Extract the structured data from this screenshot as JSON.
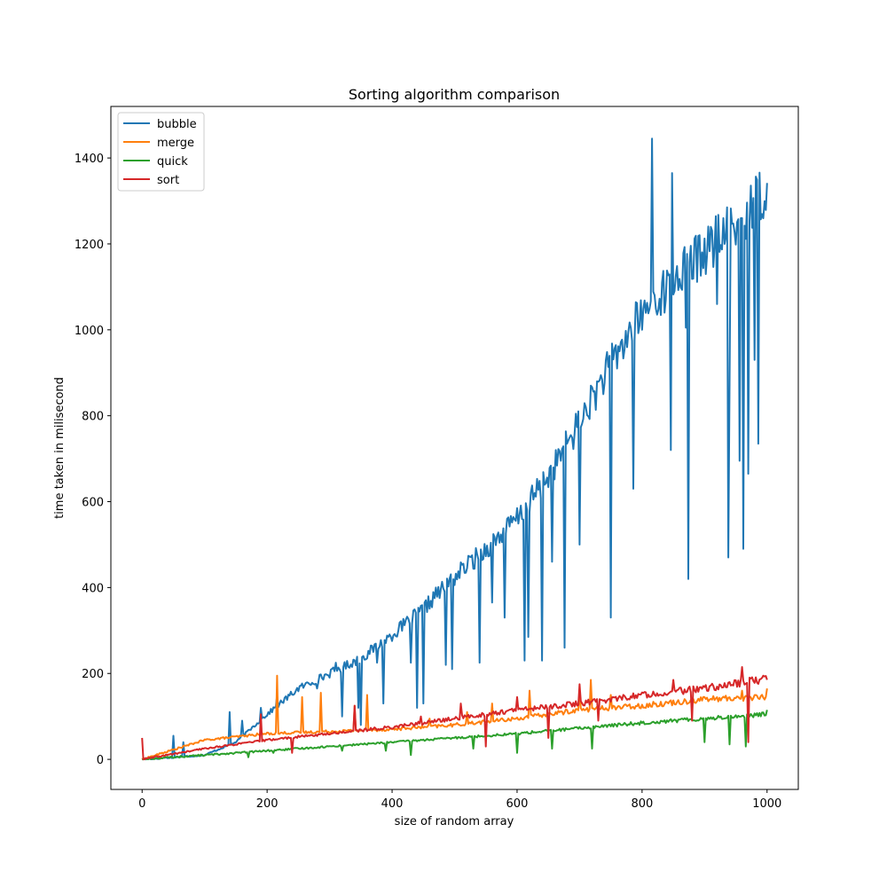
{
  "chart_data": {
    "type": "line",
    "title": "Sorting algorithm comparison",
    "xlabel": "size of random array",
    "ylabel": "time taken in milisecond",
    "xlim": [
      -50,
      1050
    ],
    "ylim": [
      -70,
      1520
    ],
    "xticks": [
      0,
      200,
      400,
      600,
      800,
      1000
    ],
    "yticks": [
      0,
      200,
      400,
      600,
      800,
      1000,
      1200,
      1400
    ],
    "grid": false,
    "legend_position": "top-left",
    "series": [
      {
        "name": "bubble",
        "color": "#1f77b4",
        "trend": [
          [
            0,
            0
          ],
          [
            100,
            10
          ],
          [
            150,
            40
          ],
          [
            200,
            105
          ],
          [
            250,
            165
          ],
          [
            300,
            200
          ],
          [
            350,
            235
          ],
          [
            400,
            290
          ],
          [
            450,
            350
          ],
          [
            500,
            425
          ],
          [
            550,
            490
          ],
          [
            600,
            560
          ],
          [
            650,
            660
          ],
          [
            700,
            785
          ],
          [
            750,
            920
          ],
          [
            800,
            1040
          ],
          [
            850,
            1115
          ],
          [
            900,
            1185
          ],
          [
            950,
            1240
          ],
          [
            1000,
            1335
          ]
        ],
        "spikes": [
          [
            50,
            55
          ],
          [
            65,
            40
          ],
          [
            140,
            110
          ],
          [
            160,
            90
          ],
          [
            190,
            120
          ],
          [
            215,
            150
          ],
          [
            280,
            165
          ],
          [
            310,
            225
          ],
          [
            320,
            100
          ],
          [
            345,
            120
          ],
          [
            350,
            80
          ],
          [
            375,
            225
          ],
          [
            385,
            130
          ],
          [
            430,
            225
          ],
          [
            440,
            120
          ],
          [
            450,
            130
          ],
          [
            470,
            400
          ],
          [
            485,
            220
          ],
          [
            495,
            210
          ],
          [
            540,
            225
          ],
          [
            560,
            365
          ],
          [
            580,
            330
          ],
          [
            612,
            230
          ],
          [
            618,
            285
          ],
          [
            640,
            230
          ],
          [
            655,
            460
          ],
          [
            675,
            260
          ],
          [
            680,
            735
          ],
          [
            700,
            500
          ],
          [
            750,
            330
          ],
          [
            785,
            630
          ],
          [
            800,
            1000
          ],
          [
            815,
            1445
          ],
          [
            835,
            1040
          ],
          [
            845,
            720
          ],
          [
            848,
            1365
          ],
          [
            870,
            1005
          ],
          [
            873,
            420
          ],
          [
            920,
            460
          ],
          [
            920,
            1060
          ],
          [
            935,
            1285
          ],
          [
            937,
            470
          ],
          [
            940,
            875
          ],
          [
            955,
            695
          ],
          [
            962,
            490
          ],
          [
            970,
            665
          ],
          [
            980,
            930
          ],
          [
            985,
            735
          ]
        ]
      },
      {
        "name": "merge",
        "color": "#ff7f0e",
        "trend": [
          [
            0,
            0
          ],
          [
            100,
            45
          ],
          [
            200,
            60
          ],
          [
            300,
            65
          ],
          [
            400,
            70
          ],
          [
            500,
            80
          ],
          [
            600,
            95
          ],
          [
            700,
            115
          ],
          [
            800,
            125
          ],
          [
            900,
            140
          ],
          [
            1000,
            145
          ]
        ],
        "spikes": [
          [
            215,
            195
          ],
          [
            255,
            145
          ],
          [
            285,
            155
          ],
          [
            340,
            125
          ],
          [
            360,
            150
          ],
          [
            460,
            95
          ],
          [
            520,
            110
          ],
          [
            560,
            130
          ],
          [
            620,
            160
          ],
          [
            700,
            160
          ],
          [
            718,
            185
          ],
          [
            750,
            150
          ],
          [
            900,
            145
          ],
          [
            960,
            160
          ],
          [
            1000,
            165
          ]
        ]
      },
      {
        "name": "quick",
        "color": "#2ca02c",
        "trend": [
          [
            0,
            0
          ],
          [
            200,
            20
          ],
          [
            400,
            40
          ],
          [
            600,
            60
          ],
          [
            800,
            85
          ],
          [
            1000,
            105
          ]
        ],
        "spikes": [
          [
            170,
            5
          ],
          [
            210,
            15
          ],
          [
            320,
            20
          ],
          [
            390,
            20
          ],
          [
            430,
            10
          ],
          [
            530,
            25
          ],
          [
            600,
            15
          ],
          [
            655,
            25
          ],
          [
            720,
            25
          ],
          [
            900,
            40
          ],
          [
            940,
            35
          ],
          [
            965,
            30
          ],
          [
            1000,
            115
          ]
        ]
      },
      {
        "name": "sort",
        "color": "#d62728",
        "trend": [
          [
            0,
            0
          ],
          [
            100,
            25
          ],
          [
            200,
            45
          ],
          [
            300,
            60
          ],
          [
            400,
            75
          ],
          [
            500,
            95
          ],
          [
            600,
            115
          ],
          [
            700,
            130
          ],
          [
            800,
            150
          ],
          [
            900,
            165
          ],
          [
            1000,
            188
          ]
        ],
        "spikes": [
          [
            0,
            50
          ],
          [
            190,
            105
          ],
          [
            240,
            15
          ],
          [
            340,
            125
          ],
          [
            445,
            100
          ],
          [
            510,
            130
          ],
          [
            550,
            30
          ],
          [
            600,
            145
          ],
          [
            650,
            50
          ],
          [
            700,
            175
          ],
          [
            730,
            90
          ],
          [
            850,
            185
          ],
          [
            880,
            90
          ],
          [
            960,
            215
          ],
          [
            970,
            40
          ]
        ]
      }
    ]
  }
}
